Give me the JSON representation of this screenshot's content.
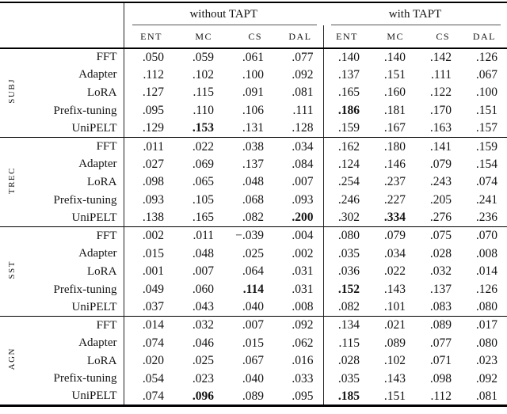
{
  "table": {
    "col_groups": [
      {
        "label": "without TAPT"
      },
      {
        "label": "with TAPT"
      }
    ],
    "sub_columns": [
      "ENT",
      "MC",
      "CS",
      "DAL"
    ],
    "row_groups": [
      {
        "label": "SUBJ",
        "rows": [
          {
            "label": "FFT",
            "values": [
              ".050",
              ".059",
              ".061",
              ".077",
              ".140",
              ".140",
              ".142",
              ".126"
            ],
            "bold": []
          },
          {
            "label": "Adapter",
            "values": [
              ".112",
              ".102",
              ".100",
              ".092",
              ".137",
              ".151",
              ".111",
              ".067"
            ],
            "bold": []
          },
          {
            "label": "LoRA",
            "values": [
              ".127",
              ".115",
              ".091",
              ".081",
              ".165",
              ".160",
              ".122",
              ".100"
            ],
            "bold": []
          },
          {
            "label": "Prefix-tuning",
            "values": [
              ".095",
              ".110",
              ".106",
              ".111",
              ".186",
              ".181",
              ".170",
              ".151"
            ],
            "bold": [
              4
            ]
          },
          {
            "label": "UniPELT",
            "values": [
              ".129",
              ".153",
              ".131",
              ".128",
              ".159",
              ".167",
              ".163",
              ".157"
            ],
            "bold": [
              1
            ]
          }
        ]
      },
      {
        "label": "TREC",
        "rows": [
          {
            "label": "FFT",
            "values": [
              ".011",
              ".022",
              ".038",
              ".034",
              ".162",
              ".180",
              ".141",
              ".159"
            ],
            "bold": []
          },
          {
            "label": "Adapter",
            "values": [
              ".027",
              ".069",
              ".137",
              ".084",
              ".124",
              ".146",
              ".079",
              ".154"
            ],
            "bold": []
          },
          {
            "label": "LoRA",
            "values": [
              ".098",
              ".065",
              ".048",
              ".007",
              ".254",
              ".237",
              ".243",
              ".074"
            ],
            "bold": []
          },
          {
            "label": "Prefix-tuning",
            "values": [
              ".093",
              ".105",
              ".068",
              ".093",
              ".246",
              ".227",
              ".205",
              ".241"
            ],
            "bold": []
          },
          {
            "label": "UniPELT",
            "values": [
              ".138",
              ".165",
              ".082",
              ".200",
              ".302",
              ".334",
              ".276",
              ".236"
            ],
            "bold": [
              3,
              5
            ]
          }
        ]
      },
      {
        "label": "SST",
        "rows": [
          {
            "label": "FFT",
            "values": [
              ".002",
              ".011",
              "−.039",
              ".004",
              ".080",
              ".079",
              ".075",
              ".070"
            ],
            "bold": []
          },
          {
            "label": "Adapter",
            "values": [
              ".015",
              ".048",
              ".025",
              ".002",
              ".035",
              ".034",
              ".028",
              ".008"
            ],
            "bold": []
          },
          {
            "label": "LoRA",
            "values": [
              ".001",
              ".007",
              ".064",
              ".031",
              ".036",
              ".022",
              ".032",
              ".014"
            ],
            "bold": []
          },
          {
            "label": "Prefix-tuning",
            "values": [
              ".049",
              ".060",
              ".114",
              ".031",
              ".152",
              ".143",
              ".137",
              ".126"
            ],
            "bold": [
              2,
              4
            ]
          },
          {
            "label": "UniPELT",
            "values": [
              ".037",
              ".043",
              ".040",
              ".008",
              ".082",
              ".101",
              ".083",
              ".080"
            ],
            "bold": []
          }
        ]
      },
      {
        "label": "AGN",
        "rows": [
          {
            "label": "FFT",
            "values": [
              ".014",
              ".032",
              ".007",
              ".092",
              ".134",
              ".021",
              ".089",
              ".017"
            ],
            "bold": []
          },
          {
            "label": "Adapter",
            "values": [
              ".074",
              ".046",
              ".015",
              ".062",
              ".115",
              ".089",
              ".077",
              ".080"
            ],
            "bold": []
          },
          {
            "label": "LoRA",
            "values": [
              ".020",
              ".025",
              ".067",
              ".016",
              ".028",
              ".102",
              ".071",
              ".023"
            ],
            "bold": []
          },
          {
            "label": "Prefix-tuning",
            "values": [
              ".054",
              ".023",
              ".040",
              ".033",
              ".035",
              ".143",
              ".098",
              ".092"
            ],
            "bold": []
          },
          {
            "label": "UniPELT",
            "values": [
              ".074",
              ".096",
              ".089",
              ".095",
              ".185",
              ".151",
              ".112",
              ".081"
            ],
            "bold": [
              1,
              4
            ]
          }
        ]
      }
    ]
  }
}
